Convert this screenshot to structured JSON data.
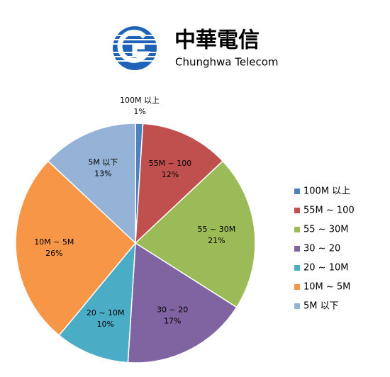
{
  "logo": {
    "name": "中華電信",
    "subtitle": "Chunghwa Telecom"
  },
  "chart_data": {
    "type": "pie",
    "categories": [
      "100M 以上",
      "55M ~ 100",
      "55 ~ 30M",
      "30 ~ 20",
      "20 ~ 10M",
      "10M ~ 5M",
      "5M 以下"
    ],
    "values": [
      1,
      12,
      21,
      17,
      10,
      26,
      13
    ],
    "value_labels": [
      "1%",
      "12%",
      "21%",
      "17%",
      "10%",
      "26%",
      "13%"
    ],
    "colors": [
      "#4f81bd",
      "#c0504d",
      "#9bbb59",
      "#8064a2",
      "#4bacc6",
      "#f79646",
      "#95b3d7"
    ],
    "legend": "right"
  }
}
